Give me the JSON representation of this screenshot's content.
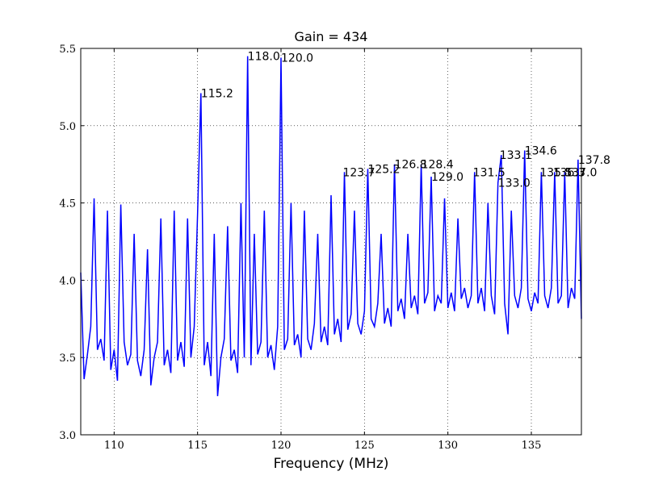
{
  "chart_data": {
    "type": "line",
    "title": "Gain = 434",
    "xlabel": "Frequency (MHz)",
    "xlim": [
      108,
      138
    ],
    "ylim": [
      3.0,
      5.5
    ],
    "xticks": [
      110,
      115,
      120,
      125,
      130,
      135
    ],
    "yticks": [
      {
        "value": 3.0,
        "label": "3.0"
      },
      {
        "value": 3.5,
        "label": "3.5"
      },
      {
        "value": 4.0,
        "label": "4.0"
      },
      {
        "value": 4.5,
        "label": "4.5"
      },
      {
        "value": 5.0,
        "label": "5.0"
      },
      {
        "value": 5.5,
        "label": "5.5"
      }
    ],
    "grid": true,
    "x": [
      108.0,
      108.2,
      108.4,
      108.6,
      108.8,
      109.0,
      109.2,
      109.4,
      109.6,
      109.8,
      110.0,
      110.2,
      110.4,
      110.6,
      110.8,
      111.0,
      111.2,
      111.4,
      111.6,
      111.8,
      112.0,
      112.2,
      112.4,
      112.6,
      112.8,
      113.0,
      113.2,
      113.4,
      113.6,
      113.8,
      114.0,
      114.2,
      114.4,
      114.6,
      114.8,
      115.0,
      115.2,
      115.4,
      115.6,
      115.8,
      116.0,
      116.2,
      116.4,
      116.6,
      116.8,
      117.0,
      117.2,
      117.4,
      117.6,
      117.8,
      118.0,
      118.2,
      118.4,
      118.6,
      118.8,
      119.0,
      119.2,
      119.4,
      119.6,
      119.8,
      120.0,
      120.2,
      120.4,
      120.6,
      120.8,
      121.0,
      121.2,
      121.4,
      121.6,
      121.8,
      122.0,
      122.2,
      122.4,
      122.6,
      122.8,
      123.0,
      123.2,
      123.4,
      123.6,
      123.8,
      124.0,
      124.2,
      124.4,
      124.6,
      124.8,
      125.0,
      125.2,
      125.4,
      125.6,
      125.8,
      126.0,
      126.2,
      126.4,
      126.6,
      126.8,
      127.0,
      127.2,
      127.4,
      127.6,
      127.8,
      128.0,
      128.2,
      128.4,
      128.6,
      128.8,
      129.0,
      129.2,
      129.4,
      129.6,
      129.8,
      130.0,
      130.2,
      130.4,
      130.6,
      130.8,
      131.0,
      131.2,
      131.4,
      131.6,
      131.8,
      132.0,
      132.2,
      132.4,
      132.6,
      132.8,
      133.0,
      133.2,
      133.4,
      133.6,
      133.8,
      134.0,
      134.2,
      134.4,
      134.6,
      134.8,
      135.0,
      135.2,
      135.4,
      135.6,
      135.8,
      136.0,
      136.2,
      136.4,
      136.6,
      136.8,
      137.0,
      137.2,
      137.4,
      137.6,
      137.8,
      138.0
    ],
    "series": [
      {
        "color": "#0000ff",
        "values": [
          4.05,
          3.36,
          3.52,
          3.7,
          4.53,
          3.55,
          3.62,
          3.48,
          4.45,
          3.42,
          3.55,
          3.35,
          4.49,
          3.6,
          3.45,
          3.52,
          4.3,
          3.48,
          3.38,
          3.55,
          4.2,
          3.32,
          3.5,
          3.6,
          4.4,
          3.45,
          3.55,
          3.4,
          4.45,
          3.48,
          3.6,
          3.44,
          4.4,
          3.5,
          3.7,
          4.43,
          5.21,
          3.45,
          3.6,
          3.38,
          4.3,
          3.25,
          3.5,
          3.62,
          4.35,
          3.48,
          3.55,
          3.4,
          4.5,
          3.5,
          5.45,
          3.45,
          4.3,
          3.52,
          3.6,
          4.45,
          3.5,
          3.58,
          3.42,
          3.7,
          5.44,
          3.55,
          3.62,
          4.5,
          3.58,
          3.65,
          3.5,
          4.45,
          3.62,
          3.55,
          3.72,
          4.3,
          3.6,
          3.7,
          3.58,
          4.55,
          3.65,
          3.75,
          3.6,
          4.7,
          3.68,
          3.78,
          4.45,
          3.72,
          3.65,
          3.8,
          4.72,
          3.75,
          3.7,
          3.85,
          4.3,
          3.72,
          3.82,
          3.7,
          4.75,
          3.8,
          3.88,
          3.75,
          4.3,
          3.82,
          3.9,
          3.78,
          4.75,
          3.85,
          3.92,
          4.67,
          3.8,
          3.9,
          3.85,
          4.53,
          3.82,
          3.92,
          3.8,
          4.4,
          3.88,
          3.95,
          3.82,
          3.9,
          4.7,
          3.85,
          3.95,
          3.8,
          4.5,
          3.9,
          3.78,
          4.63,
          4.81,
          3.85,
          3.65,
          4.45,
          3.9,
          3.82,
          3.95,
          4.84,
          3.88,
          3.8,
          3.92,
          3.85,
          4.7,
          3.9,
          3.82,
          3.95,
          4.7,
          3.85,
          3.9,
          4.7,
          3.82,
          3.95,
          3.88,
          4.78,
          3.75
        ]
      }
    ],
    "annotations": [
      {
        "text": "115.2",
        "x": 115.2,
        "y": 5.21
      },
      {
        "text": "118.0",
        "x": 118.0,
        "y": 5.45
      },
      {
        "text": "120.0",
        "x": 120.0,
        "y": 5.44
      },
      {
        "text": "123.7",
        "x": 123.7,
        "y": 4.7
      },
      {
        "text": "125.2",
        "x": 125.2,
        "y": 4.72
      },
      {
        "text": "126.8",
        "x": 126.8,
        "y": 4.75
      },
      {
        "text": "128.4",
        "x": 128.4,
        "y": 4.75
      },
      {
        "text": "129.0",
        "x": 129.0,
        "y": 4.67
      },
      {
        "text": "131.5",
        "x": 131.5,
        "y": 4.7
      },
      {
        "text": "133.1",
        "x": 133.1,
        "y": 4.81
      },
      {
        "text": "133.0",
        "x": 133.0,
        "y": 4.63
      },
      {
        "text": "134.6",
        "x": 134.6,
        "y": 4.84
      },
      {
        "text": "135.5",
        "x": 135.5,
        "y": 4.7
      },
      {
        "text": "136.3",
        "x": 136.3,
        "y": 4.7
      },
      {
        "text": "137.0",
        "x": 137.0,
        "y": 4.7
      },
      {
        "text": "137.8",
        "x": 137.8,
        "y": 4.78
      }
    ]
  }
}
